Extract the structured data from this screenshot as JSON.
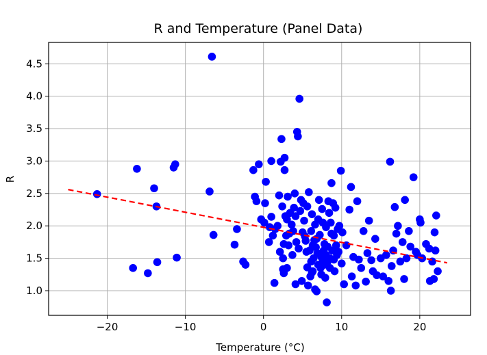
{
  "chart_data": {
    "type": "scatter",
    "title": "R and Temperature (Panel Data)",
    "xlabel": "Temperature (°C)",
    "ylabel": "R",
    "xlim": [
      -27.5,
      26.5
    ],
    "ylim": [
      0.62,
      4.83
    ],
    "xticks": [
      -20,
      -10,
      0,
      10,
      20
    ],
    "xtick_labels": [
      "−20",
      "−10",
      "0",
      "10",
      "20"
    ],
    "yticks": [
      1.0,
      1.5,
      2.0,
      2.5,
      3.0,
      3.5,
      4.0,
      4.5
    ],
    "ytick_labels": [
      "1.0",
      "1.5",
      "2.0",
      "2.5",
      "3.0",
      "3.5",
      "4.0",
      "4.5"
    ],
    "grid": true,
    "point_color": "#0000ff",
    "trend_color": "#ff0000",
    "points": [
      [
        -21.3,
        2.49
      ],
      [
        -16.2,
        2.88
      ],
      [
        -16.7,
        1.35
      ],
      [
        -14.8,
        1.27
      ],
      [
        -14.0,
        2.58
      ],
      [
        -13.7,
        2.3
      ],
      [
        -13.6,
        1.44
      ],
      [
        -11.5,
        2.9
      ],
      [
        -11.3,
        2.95
      ],
      [
        -11.1,
        1.51
      ],
      [
        -6.6,
        4.61
      ],
      [
        -6.9,
        2.53
      ],
      [
        -6.4,
        1.86
      ],
      [
        -3.7,
        1.71
      ],
      [
        -3.4,
        1.95
      ],
      [
        -2.6,
        1.45
      ],
      [
        -2.3,
        1.4
      ],
      [
        -1.3,
        2.86
      ],
      [
        -1.1,
        2.45
      ],
      [
        -0.9,
        2.38
      ],
      [
        -0.6,
        2.95
      ],
      [
        -0.3,
        2.1
      ],
      [
        0.1,
        2.05
      ],
      [
        0.2,
        2.35
      ],
      [
        0.3,
        2.68
      ],
      [
        0.7,
        1.75
      ],
      [
        0.8,
        1.98
      ],
      [
        1.0,
        3.0
      ],
      [
        1.0,
        2.14
      ],
      [
        1.2,
        1.85
      ],
      [
        1.4,
        1.12
      ],
      [
        1.8,
        2.0
      ],
      [
        2.0,
        2.47
      ],
      [
        2.2,
        2.99
      ],
      [
        2.3,
        3.34
      ],
      [
        2.4,
        2.3
      ],
      [
        2.5,
        1.5
      ],
      [
        2.5,
        1.33
      ],
      [
        2.6,
        1.27
      ],
      [
        2.6,
        1.72
      ],
      [
        2.7,
        3.05
      ],
      [
        2.7,
        2.86
      ],
      [
        2.9,
        1.85
      ],
      [
        3.0,
        2.1
      ],
      [
        3.1,
        2.45
      ],
      [
        3.2,
        1.7
      ],
      [
        3.4,
        2.2
      ],
      [
        3.6,
        2.02
      ],
      [
        3.8,
        1.92
      ],
      [
        4.0,
        2.5
      ],
      [
        4.1,
        2.15
      ],
      [
        4.1,
        1.1
      ],
      [
        4.3,
        3.45
      ],
      [
        4.4,
        3.38
      ],
      [
        4.6,
        3.96
      ],
      [
        4.7,
        2.23
      ],
      [
        4.8,
        2.4
      ],
      [
        5.0,
        1.9
      ],
      [
        5.2,
        2.08
      ],
      [
        5.4,
        1.77
      ],
      [
        5.5,
        1.6
      ],
      [
        5.6,
        2.3
      ],
      [
        5.7,
        1.08
      ],
      [
        5.8,
        2.52
      ],
      [
        6.0,
        1.22
      ],
      [
        6.1,
        1.45
      ],
      [
        6.2,
        2.18
      ],
      [
        6.3,
        1.3
      ],
      [
        6.4,
        1.5
      ],
      [
        6.6,
        1.02
      ],
      [
        6.7,
        1.67
      ],
      [
        6.8,
        1.8
      ],
      [
        6.8,
        0.99
      ],
      [
        7.0,
        1.4
      ],
      [
        7.1,
        2.4
      ],
      [
        7.1,
        1.57
      ],
      [
        7.3,
        1.35
      ],
      [
        7.4,
        1.52
      ],
      [
        7.5,
        2.26
      ],
      [
        7.6,
        1.47
      ],
      [
        7.7,
        1.62
      ],
      [
        7.8,
        1.72
      ],
      [
        7.9,
        1.2
      ],
      [
        8.0,
        1.55
      ],
      [
        8.1,
        0.82
      ],
      [
        8.2,
        1.45
      ],
      [
        8.3,
        2.38
      ],
      [
        8.4,
        2.2
      ],
      [
        8.5,
        1.5
      ],
      [
        8.6,
        2.05
      ],
      [
        8.7,
        2.66
      ],
      [
        8.8,
        1.62
      ],
      [
        8.9,
        2.35
      ],
      [
        9.0,
        1.85
      ],
      [
        9.1,
        1.3
      ],
      [
        9.2,
        2.28
      ],
      [
        9.3,
        1.7
      ],
      [
        9.4,
        1.55
      ],
      [
        9.5,
        1.95
      ],
      [
        9.7,
        2.0
      ],
      [
        9.9,
        2.85
      ],
      [
        10.1,
        1.9
      ],
      [
        10.3,
        1.1
      ],
      [
        10.6,
        1.7
      ],
      [
        11.0,
        2.25
      ],
      [
        11.2,
        2.6
      ],
      [
        11.3,
        1.22
      ],
      [
        11.5,
        1.52
      ],
      [
        11.8,
        1.08
      ],
      [
        12.0,
        2.38
      ],
      [
        12.2,
        1.48
      ],
      [
        12.5,
        1.35
      ],
      [
        12.8,
        1.92
      ],
      [
        13.1,
        1.14
      ],
      [
        13.3,
        1.58
      ],
      [
        13.5,
        2.08
      ],
      [
        13.8,
        1.47
      ],
      [
        14.0,
        1.3
      ],
      [
        14.3,
        1.8
      ],
      [
        14.5,
        1.24
      ],
      [
        15.0,
        1.5
      ],
      [
        15.3,
        1.22
      ],
      [
        15.7,
        1.55
      ],
      [
        16.0,
        1.15
      ],
      [
        16.2,
        2.99
      ],
      [
        16.3,
        1.0
      ],
      [
        16.4,
        1.38
      ],
      [
        16.6,
        1.62
      ],
      [
        16.8,
        2.29
      ],
      [
        17.0,
        1.88
      ],
      [
        17.2,
        2.0
      ],
      [
        17.5,
        1.45
      ],
      [
        17.8,
        1.75
      ],
      [
        18.0,
        1.18
      ],
      [
        18.1,
        2.4
      ],
      [
        18.3,
        1.5
      ],
      [
        18.6,
        1.92
      ],
      [
        18.8,
        1.68
      ],
      [
        19.2,
        2.75
      ],
      [
        19.5,
        1.6
      ],
      [
        19.7,
        1.55
      ],
      [
        20.0,
        2.1
      ],
      [
        20.1,
        2.05
      ],
      [
        20.3,
        1.5
      ],
      [
        20.8,
        1.72
      ],
      [
        21.2,
        1.65
      ],
      [
        21.3,
        1.15
      ],
      [
        21.6,
        1.45
      ],
      [
        21.8,
        1.18
      ],
      [
        21.9,
        1.9
      ],
      [
        22.0,
        1.62
      ],
      [
        22.1,
        2.16
      ],
      [
        22.3,
        1.3
      ],
      [
        5.9,
        1.62
      ],
      [
        6.5,
        1.78
      ],
      [
        7.2,
        1.86
      ],
      [
        7.8,
        1.4
      ],
      [
        6.9,
        1.58
      ],
      [
        8.2,
        1.68
      ],
      [
        5.3,
        1.84
      ],
      [
        6.1,
        1.92
      ],
      [
        9.0,
        1.48
      ],
      [
        7.4,
        1.25
      ],
      [
        6.3,
        1.7
      ],
      [
        8.7,
        1.88
      ],
      [
        5.6,
        1.36
      ],
      [
        7.0,
        2.1
      ],
      [
        4.5,
        1.65
      ],
      [
        3.7,
        1.55
      ],
      [
        6.6,
        2.02
      ],
      [
        8.0,
        1.98
      ],
      [
        9.6,
        1.6
      ],
      [
        10.0,
        1.42
      ],
      [
        3.0,
        1.35
      ],
      [
        4.9,
        1.15
      ],
      [
        2.8,
        2.15
      ],
      [
        3.9,
        2.28
      ],
      [
        5.1,
        2.35
      ],
      [
        7.6,
        2.05
      ],
      [
        6.2,
        1.28
      ],
      [
        8.5,
        1.35
      ],
      [
        1.5,
        1.95
      ],
      [
        2.1,
        1.6
      ],
      [
        3.3,
        1.88
      ],
      [
        4.2,
        1.75
      ]
    ],
    "trendline": {
      "x": [
        -25.0,
        23.5
      ],
      "y": [
        2.56,
        1.43
      ],
      "style": "dashed"
    }
  }
}
